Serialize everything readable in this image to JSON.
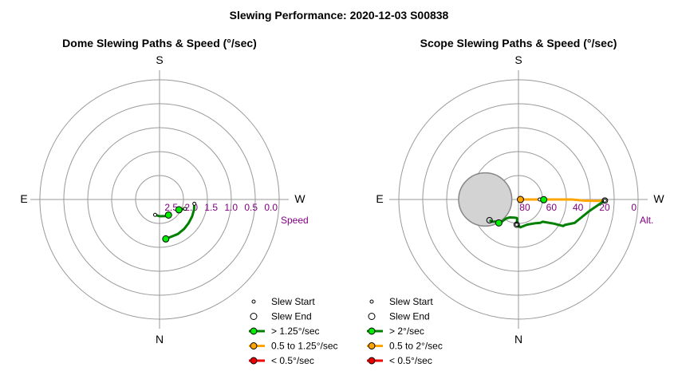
{
  "title": "Slewing Performance: 2020-12-03 S00838",
  "colors": {
    "fast": "#008000",
    "fast_marker": "#00ee00",
    "medium": "#ffa500",
    "slow": "#ee0000",
    "blocked": "#d3d3d3",
    "tick_label": "#800080"
  },
  "chart_data": [
    {
      "type": "polar-path",
      "title": "Dome Slewing Paths & Speed (°/sec)",
      "compass": {
        "top": "S",
        "left": "E",
        "right": "W",
        "bottom": "N"
      },
      "radial_axis": {
        "label": "Speed",
        "ticks": [
          "2.5",
          "2.0",
          "1.5",
          "1.0",
          "0.5",
          "0.0"
        ],
        "range": [
          0.0,
          3.0
        ],
        "center_value": 3.0
      },
      "paths": [
        {
          "category": "> 1.25°/sec",
          "points": [
            [
              -171,
              2.0
            ],
            [
              -152,
              2.02
            ],
            [
              -140,
              2.04
            ],
            [
              -129,
              2.06
            ],
            [
              -117,
              2.08
            ],
            [
              -106,
              2.1
            ],
            [
              -97,
              2.12
            ]
          ]
        },
        {
          "category": "> 1.25°/sec",
          "points": [
            [
              -118,
              2.45
            ],
            [
              -112,
              2.36
            ],
            [
              -110,
              2.32
            ]
          ]
        },
        {
          "category": "> 1.25°/sec",
          "points": [
            [
              164,
              2.6
            ],
            [
              180,
              2.58
            ],
            [
              -160,
              2.56
            ],
            [
              -150,
              2.55
            ]
          ]
        }
      ],
      "starts": [
        [
          -97,
          2.12
        ],
        [
          -110,
          2.32
        ],
        [
          164,
          2.6
        ]
      ],
      "ends": [
        [
          -171,
          2.0
        ],
        [
          -118,
          2.45
        ],
        [
          -150,
          2.55
        ]
      ],
      "markers": [
        {
          "category": "> 1.25°/sec",
          "point": [
            -171,
            2.0
          ]
        },
        {
          "category": "> 1.25°/sec",
          "point": [
            -118,
            2.45
          ]
        },
        {
          "category": "> 1.25°/sec",
          "point": [
            -150,
            2.55
          ]
        }
      ],
      "legend": {
        "placement": "bottom-right",
        "items": [
          "Slew Start",
          "Slew End",
          "> 1.25°/sec",
          "0.5 to 1.25°/sec",
          "< 0.5°/sec"
        ]
      }
    },
    {
      "type": "polar-path",
      "title": "Scope Slewing Paths & Speed (°/sec)",
      "compass": {
        "top": "S",
        "left": "E",
        "right": "W",
        "bottom": "N"
      },
      "radial_axis": {
        "label": "Alt.",
        "ticks": [
          "80",
          "60",
          "40",
          "20",
          "0"
        ],
        "range": [
          0,
          90
        ],
        "center_value": 90
      },
      "paths": [
        {
          "category": "0.5 to 2°/sec",
          "points": [
            [
              -89,
              88.5
            ],
            [
              -90,
              80
            ],
            [
              -90,
              70
            ],
            [
              -90,
              60
            ],
            [
              -90,
              50
            ],
            [
              -91,
              40
            ],
            [
              -91,
              30
            ],
            [
              -90.7,
              25
            ]
          ]
        },
        {
          "category": "> 2°/sec",
          "points": [
            [
              -90.7,
              25
            ],
            [
              -91.4,
              26.2
            ],
            [
              -99.3,
              36
            ],
            [
              -112.7,
              44.3
            ],
            [
              -118.7,
              50.2
            ],
            [
              -120.7,
              50.9
            ],
            [
              -124.1,
              57.6
            ],
            [
              -132.7,
              65.3
            ],
            [
              -137,
              66
            ],
            [
              -144,
              68
            ],
            [
              -161,
              70
            ],
            [
              -176,
              69
            ],
            [
              176,
              71
            ]
          ]
        },
        {
          "category": "> 2°/sec",
          "points": [
            [
              176,
              71
            ],
            [
              176,
              75
            ],
            [
              175,
              76
            ],
            [
              167,
              76
            ],
            [
              154,
              75
            ],
            [
              147,
              73
            ],
            [
              143,
              69
            ],
            [
              136,
              67
            ],
            [
              130,
              64
            ],
            [
              125.6,
              63.2
            ]
          ]
        }
      ],
      "starts": [
        [
          -89,
          88.5
        ],
        [
          -90,
          74
        ],
        [
          -90.7,
          25
        ],
        [
          176,
          71
        ]
      ],
      "ends": [
        [
          -90.7,
          25
        ],
        [
          176,
          71
        ],
        [
          125.6,
          63.2
        ]
      ],
      "markers": [
        {
          "category": "> 2°/sec",
          "point": [
            -90.5,
            71
          ]
        },
        {
          "category": "> 2°/sec",
          "point": [
            140,
            67
          ]
        },
        {
          "category": "0.5 to 2°/sec",
          "point": [
            -90.7,
            88.5
          ]
        }
      ],
      "blocked_region": {
        "label": "",
        "center": [
          90,
          65
        ],
        "radius_deg": 20
      },
      "legend": {
        "placement": "bottom-right",
        "items": [
          "Slew Start",
          "Slew End",
          "> 2°/sec",
          "0.5 to 2°/sec",
          "< 0.5°/sec"
        ]
      }
    }
  ]
}
